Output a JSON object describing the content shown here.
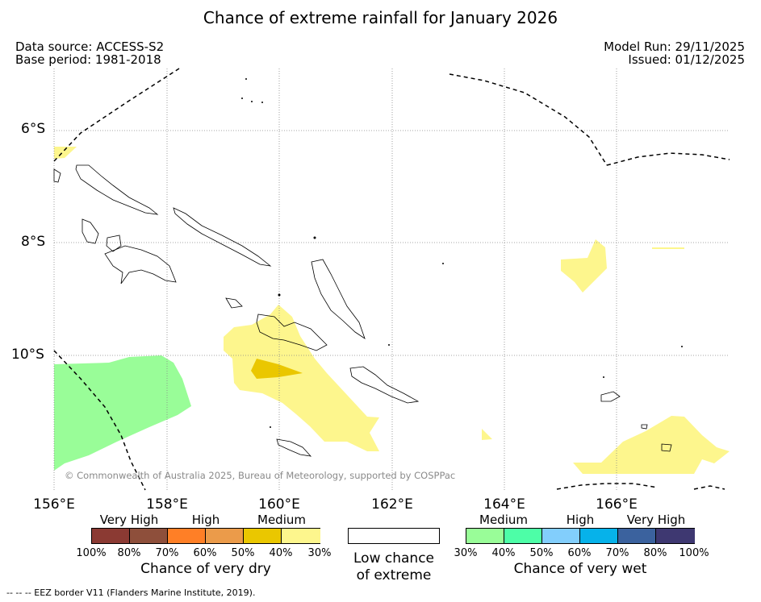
{
  "title": "Chance of extreme rainfall for January 2026",
  "meta": {
    "data_source": "Data source: ACCESS-S2",
    "base_period": "Base period: 1981-2018",
    "model_run": "Model Run: 29/11/2025",
    "issued": "Issued: 01/12/2025"
  },
  "map": {
    "lat_ticks": [
      "6°S",
      "8°S",
      "10°S"
    ],
    "lon_ticks": [
      "156°E",
      "158°E",
      "160°E",
      "162°E",
      "164°E",
      "166°E"
    ],
    "copyright": "© Commonwealth of Australia 2025, Bureau of Meteorology, supported by COSPPac",
    "colors": {
      "very_wet_30": "#99fd98",
      "medium_dry_30": "#fdf68d",
      "medium_dry_40": "#eac700"
    }
  },
  "legend_dry": {
    "heads": [
      "Very High",
      "High",
      "Medium"
    ],
    "percents": [
      "100%",
      "80%",
      "70%",
      "60%",
      "50%",
      "40%",
      "30%"
    ],
    "colors": [
      "#8b3a33",
      "#8e4f3b",
      "#ff7f26",
      "#eb9b4a",
      "#eac700",
      "#fdf68d"
    ],
    "caption": "Chance of very dry"
  },
  "legend_low": {
    "caption_line1": "Low chance",
    "caption_line2": "of extreme"
  },
  "legend_wet": {
    "heads": [
      "Medium",
      "High",
      "Very High"
    ],
    "percents": [
      "30%",
      "40%",
      "50%",
      "60%",
      "70%",
      "80%",
      "100%"
    ],
    "colors": [
      "#99fd98",
      "#4dfea7",
      "#82cefc",
      "#06b2ea",
      "#3b629e",
      "#3e3871"
    ],
    "caption": "Chance of very wet"
  },
  "footer": "--  --  -- EEZ border V11 (Flanders Marine Institute, 2019)."
}
